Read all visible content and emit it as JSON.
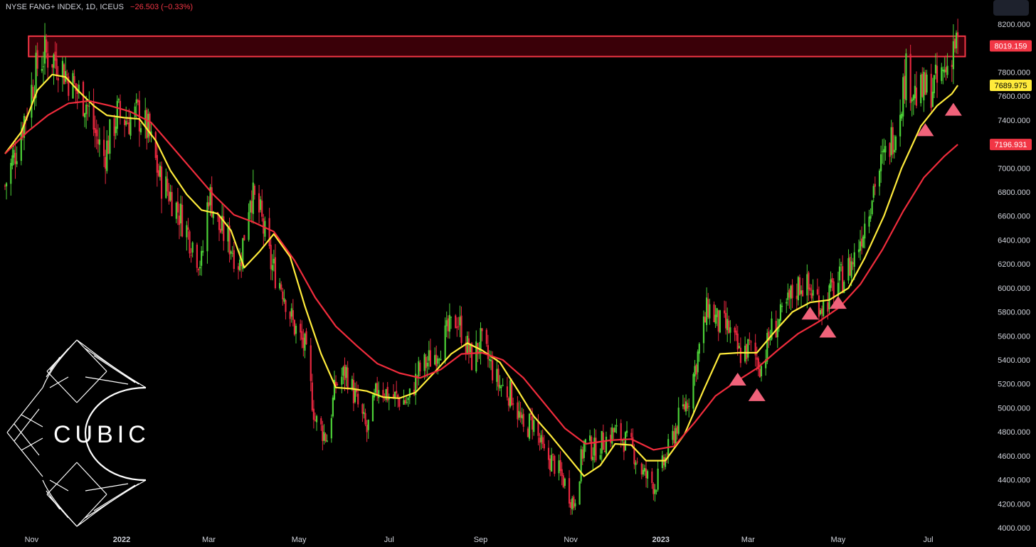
{
  "header": {
    "symbol": "NYSE FANG+ INDEX, 1D, ICEUS",
    "change": "−26.503 (−0.33%)"
  },
  "colors": {
    "background": "#000000",
    "candle_up": "#4cd137",
    "candle_down": "#e8273f",
    "ma_fast": "#ffeb3b",
    "ma_slow": "#f02c3c",
    "resistance_fill": "#3a0008",
    "resistance_border": "#f23645",
    "triangle": "#f0627a",
    "text": "#d1d4dc"
  },
  "logo": {
    "text": "CUBIC"
  },
  "chart_data": {
    "type": "candlestick",
    "title": "NYSE FANG+ INDEX, 1D, ICEUS",
    "x_range": [
      "2021-10-14",
      "2023-07-21"
    ],
    "ylim": [
      4000,
      8200
    ],
    "y_ticks": [
      4000,
      4200,
      4400,
      4600,
      4800,
      5000,
      5200,
      5400,
      5600,
      5800,
      6000,
      6200,
      6400,
      6600,
      6800,
      7000,
      7200,
      7400,
      7600,
      7800,
      8000,
      8200
    ],
    "y_tick_labels": [
      "4000.000",
      "4200.000",
      "4400.000",
      "4600.000",
      "4800.000",
      "5000.000",
      "5200.000",
      "5400.000",
      "5600.000",
      "5800.000",
      "6000.000",
      "6200.000",
      "6400.000",
      "6600.000",
      "6800.000",
      "7000.000",
      "7200.000",
      "7400.000",
      "7600.000",
      "7800.000",
      "8000.000",
      "8200.000"
    ],
    "x_ticks": [
      {
        "date": "2021-11-01",
        "label": "Nov"
      },
      {
        "date": "2022-01-01",
        "label": "2022"
      },
      {
        "date": "2022-03-01",
        "label": "Mar"
      },
      {
        "date": "2022-05-01",
        "label": "May"
      },
      {
        "date": "2022-07-01",
        "label": "Jul"
      },
      {
        "date": "2022-09-01",
        "label": "Sep"
      },
      {
        "date": "2022-11-01",
        "label": "Nov"
      },
      {
        "date": "2023-01-01",
        "label": "2023"
      },
      {
        "date": "2023-03-01",
        "label": "Mar"
      },
      {
        "date": "2023-05-01",
        "label": "May"
      },
      {
        "date": "2023-07-01",
        "label": "Jul"
      }
    ],
    "price_path": [
      [
        "2021-10-14",
        6850
      ],
      [
        "2021-10-22",
        7180
      ],
      [
        "2021-11-05",
        7850
      ],
      [
        "2021-11-10",
        7950
      ],
      [
        "2021-11-19",
        7900
      ],
      [
        "2021-12-01",
        7650
      ],
      [
        "2021-12-08",
        7550
      ],
      [
        "2021-12-15",
        7250
      ],
      [
        "2021-12-20",
        7100
      ],
      [
        "2021-12-29",
        7450
      ],
      [
        "2022-01-05",
        7400
      ],
      [
        "2022-01-12",
        7450
      ],
      [
        "2022-01-19",
        7300
      ],
      [
        "2022-01-27",
        6900
      ],
      [
        "2022-02-02",
        6800
      ],
      [
        "2022-02-10",
        6600
      ],
      [
        "2022-02-24",
        6200
      ],
      [
        "2022-03-01",
        6800
      ],
      [
        "2022-03-08",
        6500
      ],
      [
        "2022-03-14",
        6400
      ],
      [
        "2022-03-22",
        6200
      ],
      [
        "2022-03-29",
        6800
      ],
      [
        "2022-04-05",
        6600
      ],
      [
        "2022-04-12",
        6200
      ],
      [
        "2022-04-20",
        6000
      ],
      [
        "2022-04-27",
        5700
      ],
      [
        "2022-05-05",
        5500
      ],
      [
        "2022-05-12",
        4900
      ],
      [
        "2022-05-20",
        4750
      ],
      [
        "2022-05-26",
        5200
      ],
      [
        "2022-06-02",
        5300
      ],
      [
        "2022-06-16",
        4800
      ],
      [
        "2022-06-24",
        5200
      ],
      [
        "2022-07-01",
        5100
      ],
      [
        "2022-07-14",
        5050
      ],
      [
        "2022-07-21",
        5300
      ],
      [
        "2022-08-01",
        5450
      ],
      [
        "2022-08-16",
        5750
      ],
      [
        "2022-08-26",
        5400
      ],
      [
        "2022-09-01",
        5550
      ],
      [
        "2022-09-13",
        5200
      ],
      [
        "2022-09-23",
        5100
      ],
      [
        "2022-09-30",
        4800
      ],
      [
        "2022-10-06",
        4900
      ],
      [
        "2022-10-14",
        4600
      ],
      [
        "2022-10-20",
        4550
      ],
      [
        "2022-10-27",
        4400
      ],
      [
        "2022-11-03",
        4200
      ],
      [
        "2022-11-10",
        4700
      ],
      [
        "2022-11-17",
        4650
      ],
      [
        "2022-11-30",
        4800
      ],
      [
        "2022-12-06",
        4750
      ],
      [
        "2022-12-13",
        4650
      ],
      [
        "2022-12-20",
        4450
      ],
      [
        "2022-12-28",
        4350
      ],
      [
        "2023-01-05",
        4600
      ],
      [
        "2023-01-13",
        4900
      ],
      [
        "2023-01-20",
        5100
      ],
      [
        "2023-01-27",
        5500
      ],
      [
        "2023-02-02",
        5850
      ],
      [
        "2023-02-09",
        5700
      ],
      [
        "2023-02-16",
        5650
      ],
      [
        "2023-02-23",
        5450
      ],
      [
        "2023-03-02",
        5500
      ],
      [
        "2023-03-10",
        5350
      ],
      [
        "2023-03-17",
        5650
      ],
      [
        "2023-03-24",
        5750
      ],
      [
        "2023-03-31",
        5950
      ],
      [
        "2023-04-06",
        6050
      ],
      [
        "2023-04-14",
        5950
      ],
      [
        "2023-04-21",
        5850
      ],
      [
        "2023-04-28",
        6000
      ],
      [
        "2023-05-05",
        6100
      ],
      [
        "2023-05-12",
        6250
      ],
      [
        "2023-05-19",
        6550
      ],
      [
        "2023-05-26",
        6900
      ],
      [
        "2023-06-02",
        7100
      ],
      [
        "2023-06-09",
        7350
      ],
      [
        "2023-06-16",
        7800
      ],
      [
        "2023-06-23",
        7600
      ],
      [
        "2023-06-30",
        7650
      ],
      [
        "2023-07-07",
        7700
      ],
      [
        "2023-07-14",
        7850
      ],
      [
        "2023-07-18",
        8050
      ],
      [
        "2023-07-21",
        8019.159
      ]
    ],
    "series": [
      {
        "name": "MA fast",
        "color": "#ffeb3b",
        "points": [
          [
            "2021-10-14",
            7120
          ],
          [
            "2021-10-25",
            7300
          ],
          [
            "2021-11-05",
            7650
          ],
          [
            "2021-11-15",
            7780
          ],
          [
            "2021-11-24",
            7760
          ],
          [
            "2021-12-03",
            7640
          ],
          [
            "2021-12-13",
            7520
          ],
          [
            "2021-12-22",
            7440
          ],
          [
            "2022-01-03",
            7420
          ],
          [
            "2022-01-13",
            7410
          ],
          [
            "2022-01-24",
            7230
          ],
          [
            "2022-02-03",
            6980
          ],
          [
            "2022-02-14",
            6780
          ],
          [
            "2022-02-24",
            6650
          ],
          [
            "2022-03-07",
            6620
          ],
          [
            "2022-03-16",
            6480
          ],
          [
            "2022-03-25",
            6170
          ],
          [
            "2022-04-04",
            6300
          ],
          [
            "2022-04-14",
            6450
          ],
          [
            "2022-04-25",
            6260
          ],
          [
            "2022-05-05",
            5850
          ],
          [
            "2022-05-16",
            5450
          ],
          [
            "2022-05-26",
            5170
          ],
          [
            "2022-06-06",
            5160
          ],
          [
            "2022-06-16",
            5140
          ],
          [
            "2022-06-27",
            5090
          ],
          [
            "2022-07-08",
            5080
          ],
          [
            "2022-07-19",
            5130
          ],
          [
            "2022-08-01",
            5300
          ],
          [
            "2022-08-12",
            5450
          ],
          [
            "2022-08-23",
            5540
          ],
          [
            "2022-09-02",
            5480
          ],
          [
            "2022-09-14",
            5380
          ],
          [
            "2022-09-26",
            5150
          ],
          [
            "2022-10-07",
            4930
          ],
          [
            "2022-10-19",
            4760
          ],
          [
            "2022-10-31",
            4580
          ],
          [
            "2022-11-10",
            4430
          ],
          [
            "2022-11-21",
            4520
          ],
          [
            "2022-12-01",
            4700
          ],
          [
            "2022-12-12",
            4690
          ],
          [
            "2022-12-22",
            4560
          ],
          [
            "2023-01-04",
            4560
          ],
          [
            "2023-01-17",
            4780
          ],
          [
            "2023-01-30",
            5150
          ],
          [
            "2023-02-10",
            5450
          ],
          [
            "2023-02-23",
            5460
          ],
          [
            "2023-03-07",
            5460
          ],
          [
            "2023-03-20",
            5650
          ],
          [
            "2023-03-31",
            5800
          ],
          [
            "2023-04-12",
            5880
          ],
          [
            "2023-04-25",
            5900
          ],
          [
            "2023-05-08",
            6000
          ],
          [
            "2023-05-19",
            6250
          ],
          [
            "2023-06-01",
            6600
          ],
          [
            "2023-06-13",
            7000
          ],
          [
            "2023-06-26",
            7350
          ],
          [
            "2023-07-07",
            7520
          ],
          [
            "2023-07-17",
            7620
          ],
          [
            "2023-07-21",
            7689.975
          ]
        ]
      },
      {
        "name": "MA slow",
        "color": "#f02c3c",
        "points": [
          [
            "2021-10-14",
            7120
          ],
          [
            "2021-10-29",
            7300
          ],
          [
            "2021-11-12",
            7440
          ],
          [
            "2021-11-26",
            7540
          ],
          [
            "2021-12-10",
            7560
          ],
          [
            "2021-12-24",
            7520
          ],
          [
            "2022-01-07",
            7470
          ],
          [
            "2022-01-21",
            7380
          ],
          [
            "2022-02-04",
            7180
          ],
          [
            "2022-02-18",
            6980
          ],
          [
            "2022-03-04",
            6780
          ],
          [
            "2022-03-18",
            6610
          ],
          [
            "2022-03-31",
            6550
          ],
          [
            "2022-04-14",
            6470
          ],
          [
            "2022-04-28",
            6230
          ],
          [
            "2022-05-12",
            5920
          ],
          [
            "2022-05-26",
            5680
          ],
          [
            "2022-06-09",
            5520
          ],
          [
            "2022-06-23",
            5370
          ],
          [
            "2022-07-08",
            5290
          ],
          [
            "2022-07-22",
            5250
          ],
          [
            "2022-08-05",
            5320
          ],
          [
            "2022-08-19",
            5450
          ],
          [
            "2022-09-02",
            5460
          ],
          [
            "2022-09-16",
            5400
          ],
          [
            "2022-09-30",
            5250
          ],
          [
            "2022-10-14",
            5040
          ],
          [
            "2022-10-28",
            4830
          ],
          [
            "2022-11-11",
            4700
          ],
          [
            "2022-11-28",
            4730
          ],
          [
            "2022-12-12",
            4740
          ],
          [
            "2022-12-27",
            4650
          ],
          [
            "2023-01-10",
            4680
          ],
          [
            "2023-01-24",
            4880
          ],
          [
            "2023-02-07",
            5100
          ],
          [
            "2023-02-21",
            5220
          ],
          [
            "2023-03-07",
            5330
          ],
          [
            "2023-03-21",
            5480
          ],
          [
            "2023-04-04",
            5620
          ],
          [
            "2023-04-18",
            5720
          ],
          [
            "2023-05-02",
            5840
          ],
          [
            "2023-05-16",
            6030
          ],
          [
            "2023-05-31",
            6320
          ],
          [
            "2023-06-14",
            6640
          ],
          [
            "2023-06-28",
            6920
          ],
          [
            "2023-07-12",
            7100
          ],
          [
            "2023-07-21",
            7196.931
          ]
        ]
      }
    ],
    "price_labels": [
      {
        "value": 8019.159,
        "text": "8019.159",
        "bg": "#f23645",
        "fg": "#ffffff"
      },
      {
        "value": 7689.975,
        "text": "7689.975",
        "bg": "#ffeb3b",
        "fg": "#000000"
      },
      {
        "value": 7196.931,
        "text": "7196.931",
        "bg": "#f23645",
        "fg": "#ffffff"
      }
    ],
    "resistance_zone": {
      "from_date": "2021-10-30",
      "to_date": "2023-07-26",
      "low": 7930,
      "high": 8100
    },
    "triangle_markers": [
      {
        "date": "2023-02-22",
        "value": 5240
      },
      {
        "date": "2023-03-07",
        "value": 5110
      },
      {
        "date": "2023-04-12",
        "value": 5790
      },
      {
        "date": "2023-04-24",
        "value": 5640
      },
      {
        "date": "2023-05-01",
        "value": 5880
      },
      {
        "date": "2023-06-29",
        "value": 7320
      },
      {
        "date": "2023-07-18",
        "value": 7490
      }
    ]
  }
}
